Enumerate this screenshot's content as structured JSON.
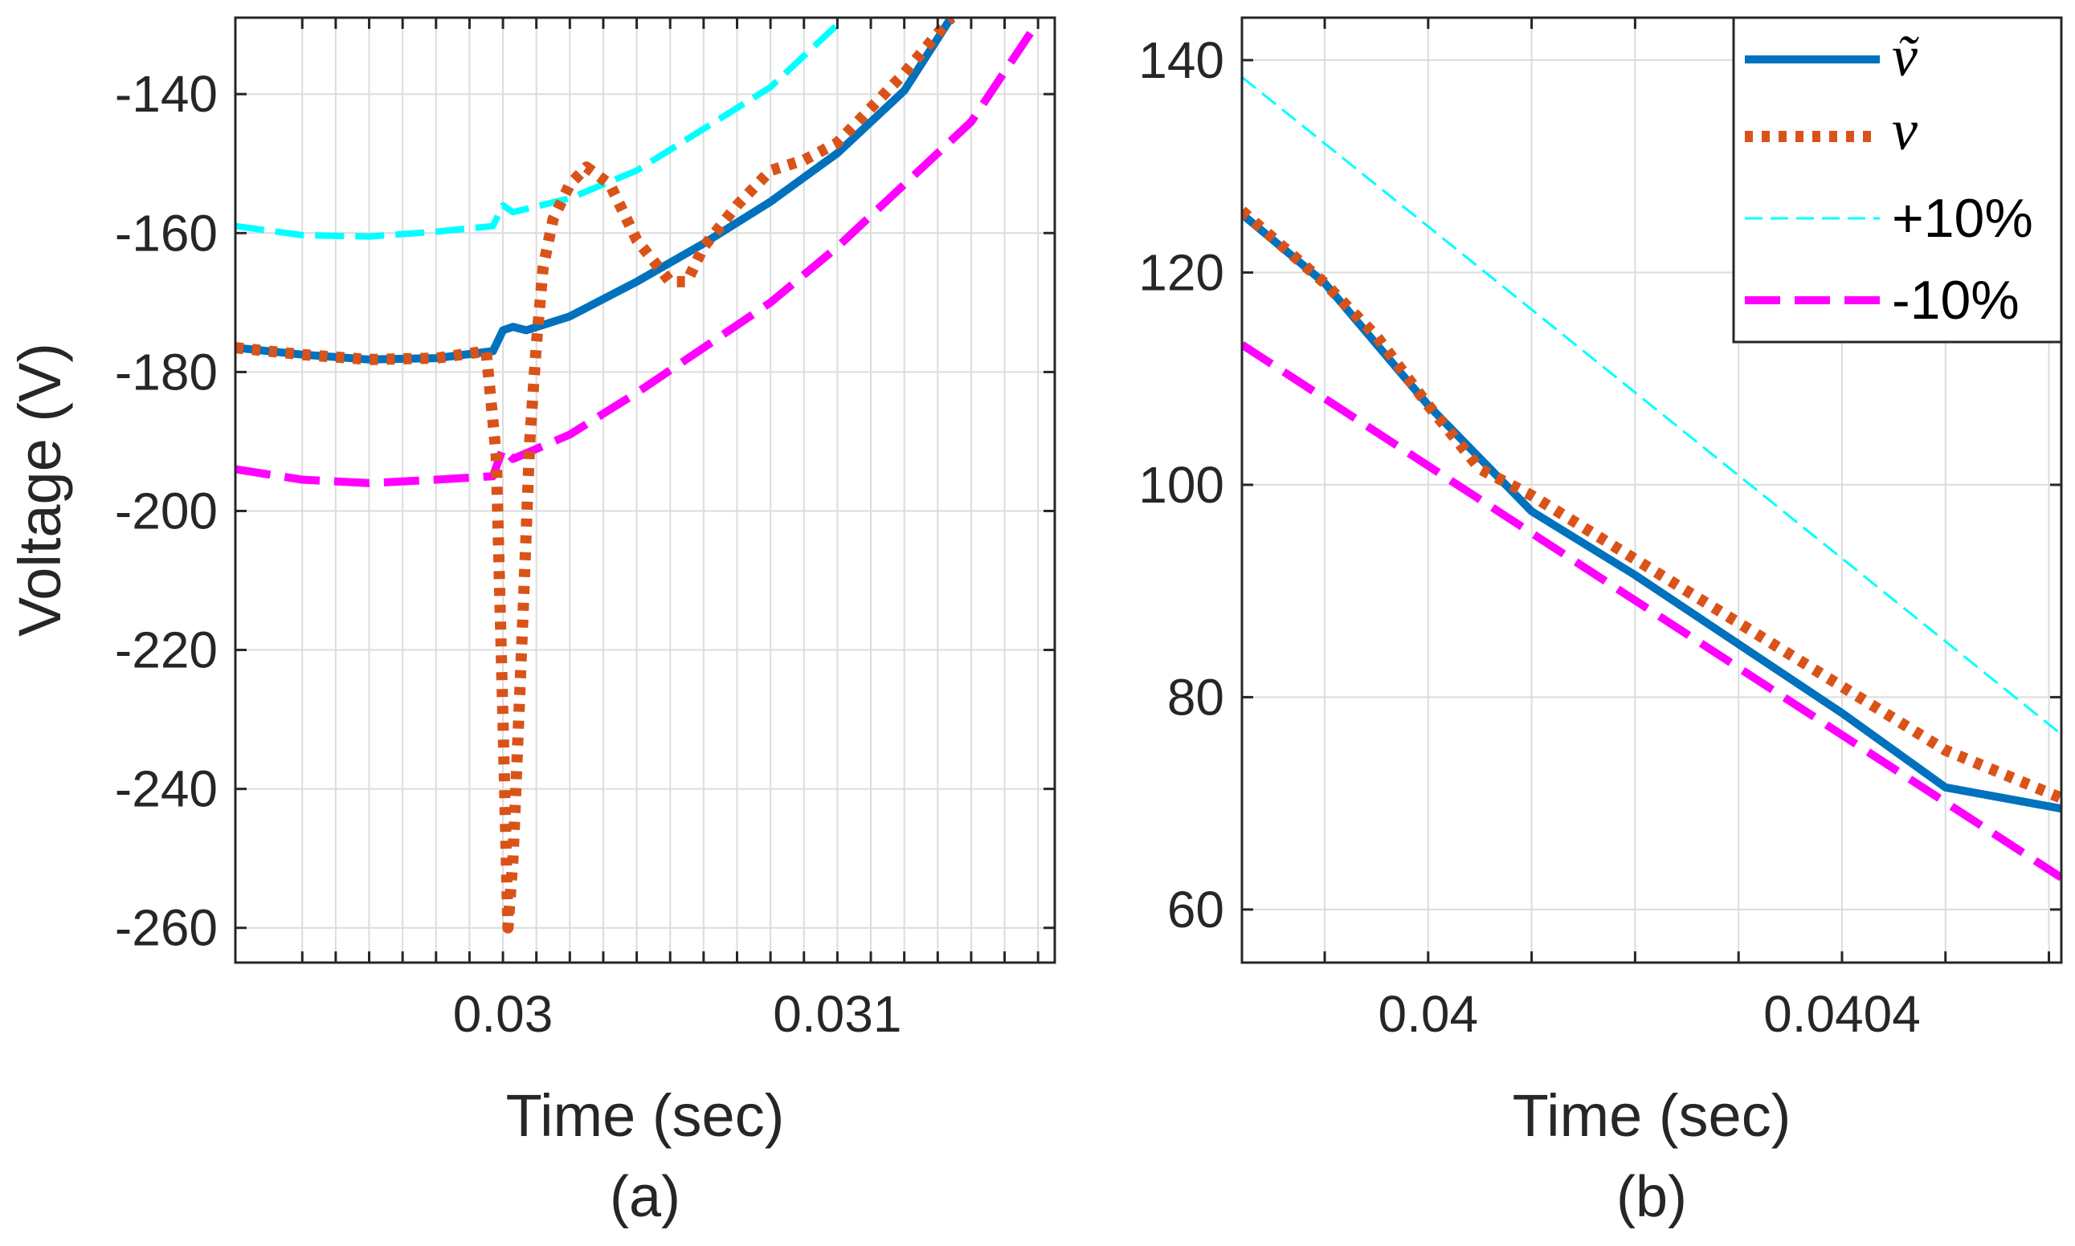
{
  "chart_data": [
    {
      "type": "line",
      "caption": "(a)",
      "xlabel": "Time (sec)",
      "ylabel": "Voltage (V)",
      "xlim": [
        0.0292,
        0.03165
      ],
      "ylim": [
        -265,
        -129
      ],
      "grid": true,
      "xticks": [
        0.0294,
        0.0295,
        0.0296,
        0.0297,
        0.0298,
        0.0299,
        0.03,
        0.0301,
        0.0302,
        0.0303,
        0.0304,
        0.0305,
        0.0306,
        0.0307,
        0.0308,
        0.0309,
        0.031,
        0.0311,
        0.0312,
        0.0313,
        0.0314,
        0.0315,
        0.0316
      ],
      "xticklabels": [
        "",
        "",
        "",
        "",
        "",
        "",
        "0.03",
        "",
        "",
        "",
        "",
        "",
        "",
        "",
        "",
        "",
        "0.031",
        "",
        "",
        "",
        "",
        "",
        ""
      ],
      "yticks": [
        -260,
        -240,
        -220,
        -200,
        -180,
        -160,
        -140
      ],
      "yticklabels": [
        "-260",
        "-240",
        "-220",
        "-200",
        "-180",
        "-160",
        "-140"
      ],
      "series": [
        {
          "name": "ṽ",
          "x": [
            0.0292,
            0.0294,
            0.0296,
            0.0298,
            0.02997,
            0.03,
            0.03003,
            0.03007,
            0.0302,
            0.0304,
            0.0306,
            0.0308,
            0.031,
            0.0312,
            0.03134
          ],
          "y": [
            -176.5,
            -177.5,
            -178.2,
            -178,
            -177,
            -174,
            -173.5,
            -174,
            -172,
            -167,
            -161.5,
            -155.5,
            -148.5,
            -139.5,
            -129
          ]
        },
        {
          "name": "v",
          "x": [
            0.0292,
            0.0294,
            0.0296,
            0.0298,
            0.02995,
            0.02998,
            0.03,
            0.030015,
            0.03003,
            0.03006,
            0.03008,
            0.0301,
            0.03012,
            0.03015,
            0.0302,
            0.03025,
            0.03032,
            0.0304,
            0.0305,
            0.03055,
            0.0306,
            0.0307,
            0.0308,
            0.0309,
            0.031,
            0.0311,
            0.0312,
            0.03134
          ],
          "y": [
            -176.5,
            -177.5,
            -178.2,
            -178,
            -177,
            -192,
            -230,
            -260,
            -250,
            -215,
            -190,
            -176,
            -165,
            -158,
            -153,
            -150.5,
            -153,
            -161,
            -167,
            -167,
            -162,
            -156,
            -151,
            -149.5,
            -147,
            -142,
            -137,
            -129
          ]
        },
        {
          "name": "+10%",
          "x": [
            0.0292,
            0.0294,
            0.0296,
            0.0298,
            0.02997,
            0.03,
            0.03003,
            0.0302,
            0.0304,
            0.0306,
            0.0308,
            0.031
          ],
          "y": [
            -159,
            -160.3,
            -160.5,
            -159.8,
            -159,
            -156,
            -157,
            -155,
            -151,
            -145,
            -139,
            -130
          ]
        },
        {
          "name": "-10%",
          "x": [
            0.0292,
            0.0294,
            0.0296,
            0.0298,
            0.02997,
            0.03,
            0.03003,
            0.0302,
            0.0304,
            0.0306,
            0.0308,
            0.031,
            0.0312,
            0.0314,
            0.03158
          ],
          "y": [
            -194,
            -195.5,
            -196,
            -195.5,
            -195,
            -191,
            -192.5,
            -189,
            -183,
            -176.5,
            -170,
            -162,
            -153,
            -144,
            -131
          ]
        }
      ]
    },
    {
      "type": "line",
      "caption": "(b)",
      "xlabel": "Time (sec)",
      "ylabel": "",
      "xlim": [
        0.03982,
        0.040612
      ],
      "ylim": [
        55,
        144
      ],
      "grid": true,
      "xticks": [
        0.0399,
        0.04,
        0.0401,
        0.0402,
        0.0403,
        0.0404,
        0.0405,
        0.0406
      ],
      "xticklabels": [
        "",
        "0.04",
        "",
        "",
        "",
        "0.0404",
        "",
        ""
      ],
      "yticks": [
        60,
        80,
        100,
        120,
        140
      ],
      "yticklabels": [
        "60",
        "80",
        "100",
        "120",
        "140"
      ],
      "legend": {
        "position": "top-right",
        "entries": [
          "ṽ",
          "v",
          "+10%",
          "-10%"
        ]
      },
      "series": [
        {
          "name": "ṽ",
          "x": [
            0.03982,
            0.0399,
            0.04,
            0.0401,
            0.0402,
            0.0403,
            0.0404,
            0.0405,
            0.040612
          ],
          "y": [
            125.5,
            119,
            107.5,
            97.5,
            91.5,
            85,
            78.5,
            71.5,
            69.5
          ]
        },
        {
          "name": "v",
          "x": [
            0.03982,
            0.0399,
            0.03995,
            0.04,
            0.04005,
            0.0401,
            0.0402,
            0.0403,
            0.0404,
            0.0405,
            0.040612
          ],
          "y": [
            125.8,
            119,
            114,
            107.5,
            101.5,
            99,
            93,
            87,
            81,
            75,
            70.5
          ]
        },
        {
          "name": "+10%",
          "x": [
            0.03982,
            0.040612
          ],
          "y": [
            138.4,
            76.5
          ]
        },
        {
          "name": "-10%",
          "x": [
            0.03982,
            0.040612
          ],
          "y": [
            113.2,
            63
          ]
        }
      ]
    }
  ],
  "styles": {
    "ṽ": {
      "color": "#0072BD",
      "width": 10,
      "dash": ""
    },
    "v": {
      "color": "#D95319",
      "width": 14,
      "dash": "10 11"
    },
    "+10%": {
      "color": "#00FFFF",
      "width": 8,
      "dash": "36 14"
    },
    "-10%": {
      "color": "#FF00FF",
      "width": 10,
      "dash": "44 18"
    },
    "+10%_b": {
      "color": "#00FFFF",
      "width": 3,
      "dash": "22 10"
    }
  },
  "legend_labels": {
    "vtilde": "ṽ",
    "v": "v",
    "plus": "+10%",
    "minus": "-10%"
  }
}
